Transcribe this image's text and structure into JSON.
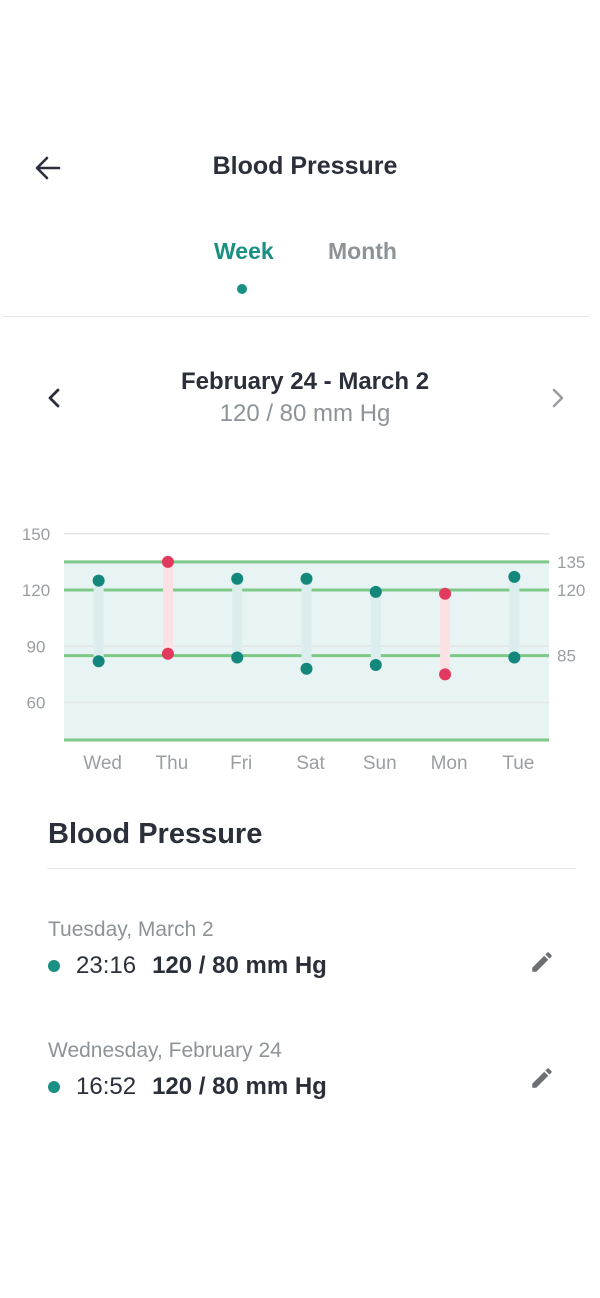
{
  "header": {
    "title": "Blood Pressure"
  },
  "tabs": [
    {
      "label": "Week",
      "active": true
    },
    {
      "label": "Month",
      "active": false
    }
  ],
  "range": {
    "label": "February 24 - March 2",
    "value": "120 / 80 mm Hg"
  },
  "chart_data": {
    "type": "range",
    "categories": [
      "Wed",
      "Thu",
      "Fri",
      "Sat",
      "Sun",
      "Mon",
      "Tue"
    ],
    "series": [
      {
        "name": "",
        "values": [
          125,
          135,
          126,
          126,
          119,
          118,
          127
        ]
      },
      {
        "name": "",
        "values": [
          82,
          86,
          84,
          78,
          80,
          75,
          84
        ]
      }
    ],
    "out_of_range": [
      false,
      true,
      false,
      false,
      false,
      true,
      false
    ],
    "ylim": [
      40,
      160
    ],
    "left_ticks": [
      150,
      120,
      90,
      60
    ],
    "right_ticks": [
      135,
      120,
      85
    ],
    "reference_lines": [
      135,
      120,
      85,
      40
    ],
    "colors": {
      "normal": "#14877c",
      "alert": "#e23a5e",
      "normal_band": "#dbeeed",
      "alert_band": "#fbe0e4",
      "zone": "#e7f4f3",
      "reference": "#7ec987",
      "grid": "#e3e5e7"
    }
  },
  "list": {
    "title": "Blood Pressure",
    "entries": [
      {
        "date": "Tuesday, March 2",
        "time": "23:16",
        "value": "120 / 80 mm Hg"
      },
      {
        "date": "Wednesday, February 24",
        "time": "16:52",
        "value": "120 / 80 mm Hg"
      }
    ]
  },
  "icons": {
    "back": "arrow-left-icon",
    "prev": "chevron-left-icon",
    "next": "chevron-right-icon",
    "edit": "pencil-icon"
  }
}
